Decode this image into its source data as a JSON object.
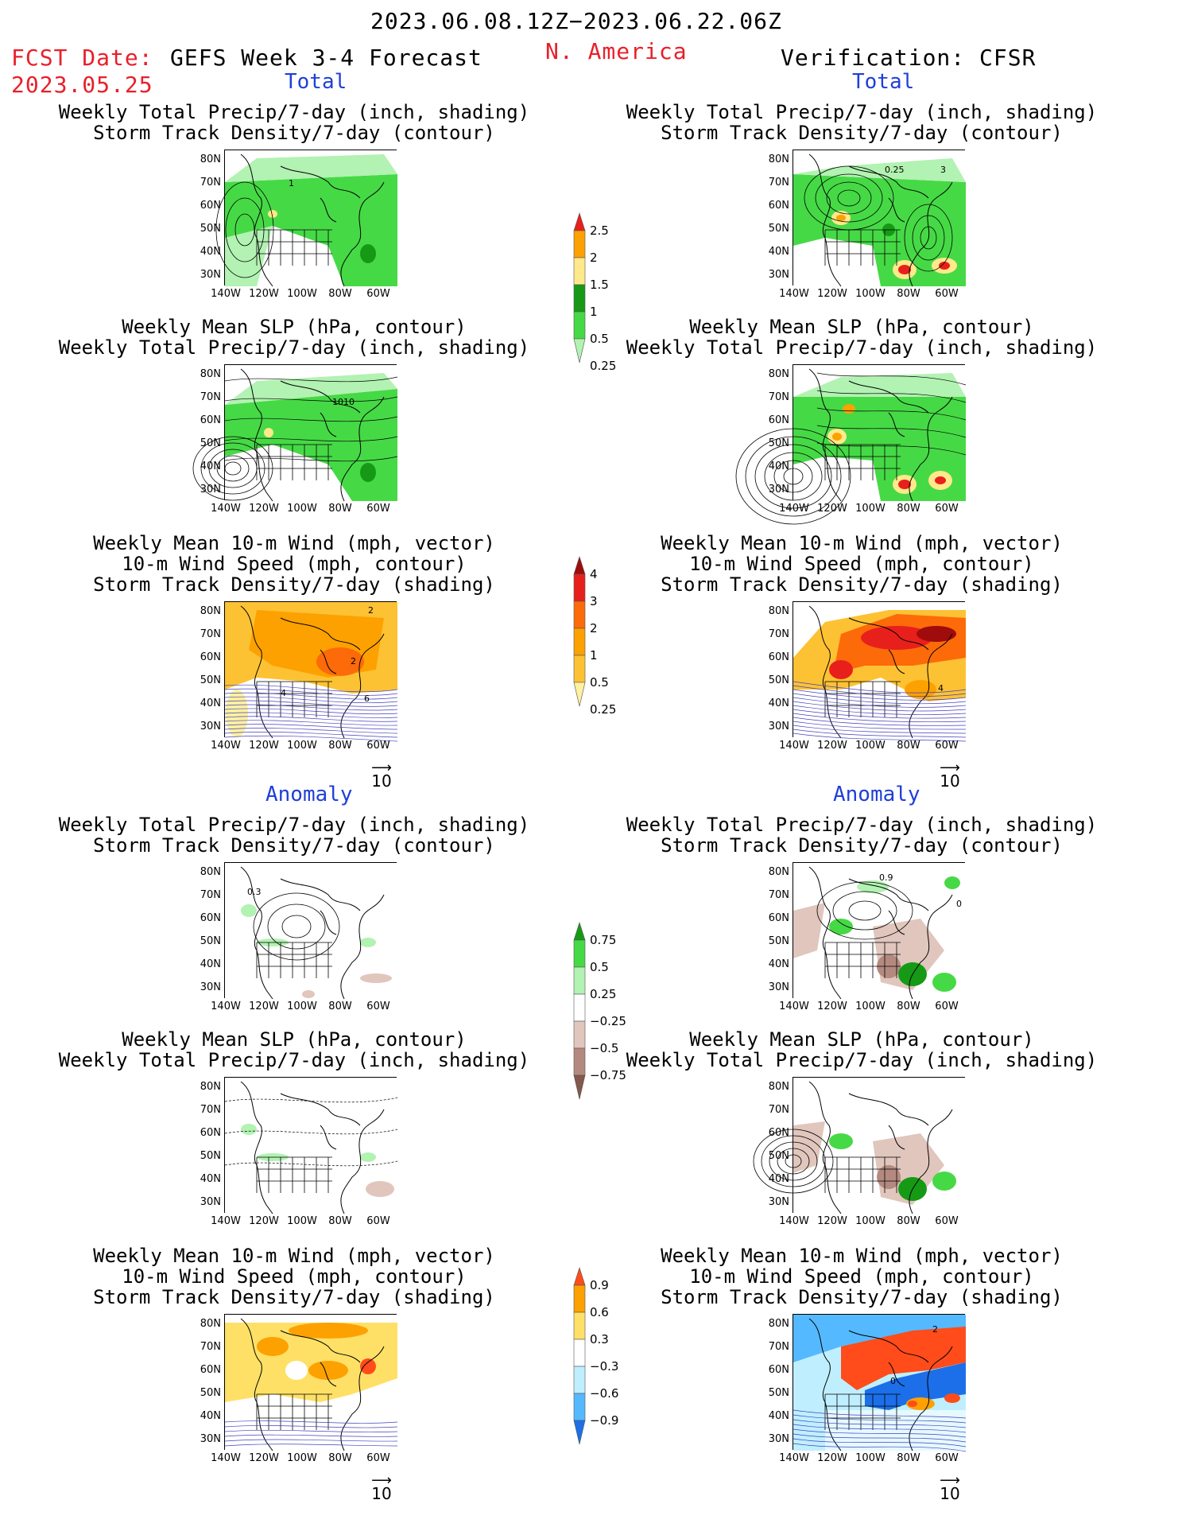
{
  "header": {
    "period": "2023.06.08.12Z−2023.06.22.06Z",
    "fcst_label": "FCST Date:",
    "fcst_date": "2023.05.25",
    "model": "GEFS Week 3-4 Forecast",
    "region": "N. America",
    "verification": "Verification: CFSR"
  },
  "sections": {
    "total": "Total",
    "anomaly": "Anomaly"
  },
  "titles": {
    "precip_storm": [
      "Weekly Total Precip/7-day (inch, shading)",
      "Storm Track Density/7-day (contour)"
    ],
    "slp_precip": [
      "Weekly Mean SLP (hPa, contour)",
      "Weekly Total Precip/7-day (inch, shading)"
    ],
    "wind_storm": [
      "Weekly Mean 10-m Wind (mph, vector)",
      "10-m Wind Speed (mph, contour)",
      "Storm Track Density/7-day (shading)"
    ]
  },
  "axes": {
    "lat": [
      "80N",
      "70N",
      "60N",
      "50N",
      "40N",
      "30N"
    ],
    "lon": [
      "140W",
      "120W",
      "100W",
      "80W",
      "60W"
    ]
  },
  "vector_ref": "10",
  "contour_labels": {
    "fc_total_precip": "1",
    "obs_total_precip": [
      "0.25",
      "3"
    ],
    "fc_total_slp": "1010",
    "fc_total_wind": [
      "2",
      "2",
      "4",
      "6"
    ],
    "obs_total_wind": [
      "4"
    ],
    "fc_anom_precip": "0.3",
    "obs_anom_precip": [
      "0.9",
      "0"
    ],
    "obs_anom_wind": [
      "2",
      "0"
    ]
  },
  "colorbars": [
    {
      "id": "precip",
      "labels": [
        "2.5",
        "2",
        "1.5",
        "1",
        "0.5",
        "0.25"
      ],
      "colors": [
        "#e8201c",
        "#fda100",
        "#ffe98a",
        "#169a16",
        "#46d946",
        "#b2f2b2"
      ]
    },
    {
      "id": "storm",
      "labels": [
        "4",
        "3",
        "2",
        "1",
        "0.5",
        "0.25"
      ],
      "colors": [
        "#a00b0b",
        "#e8201c",
        "#fd6a0a",
        "#fda100",
        "#fdc233",
        "#fff1a0"
      ]
    },
    {
      "id": "precip_anom",
      "labels": [
        "0.75",
        "0.5",
        "0.25",
        "−0.25",
        "−0.5",
        "−0.75"
      ],
      "colors": [
        "#169a16",
        "#46d946",
        "#b2f2b2",
        "#ffffff",
        "#e0c6bd",
        "#b48a80",
        "#83584d"
      ]
    },
    {
      "id": "storm_anom",
      "labels": [
        "0.9",
        "0.6",
        "0.3",
        "−0.3",
        "−0.6",
        "−0.9"
      ],
      "colors": [
        "#ff4c1a",
        "#fda100",
        "#ffe066",
        "#ffffff",
        "#bfefff",
        "#55b9ff",
        "#1c6fe8"
      ]
    }
  ],
  "colors": {
    "red": "#e8202a",
    "blue": "#1f3fd8"
  }
}
